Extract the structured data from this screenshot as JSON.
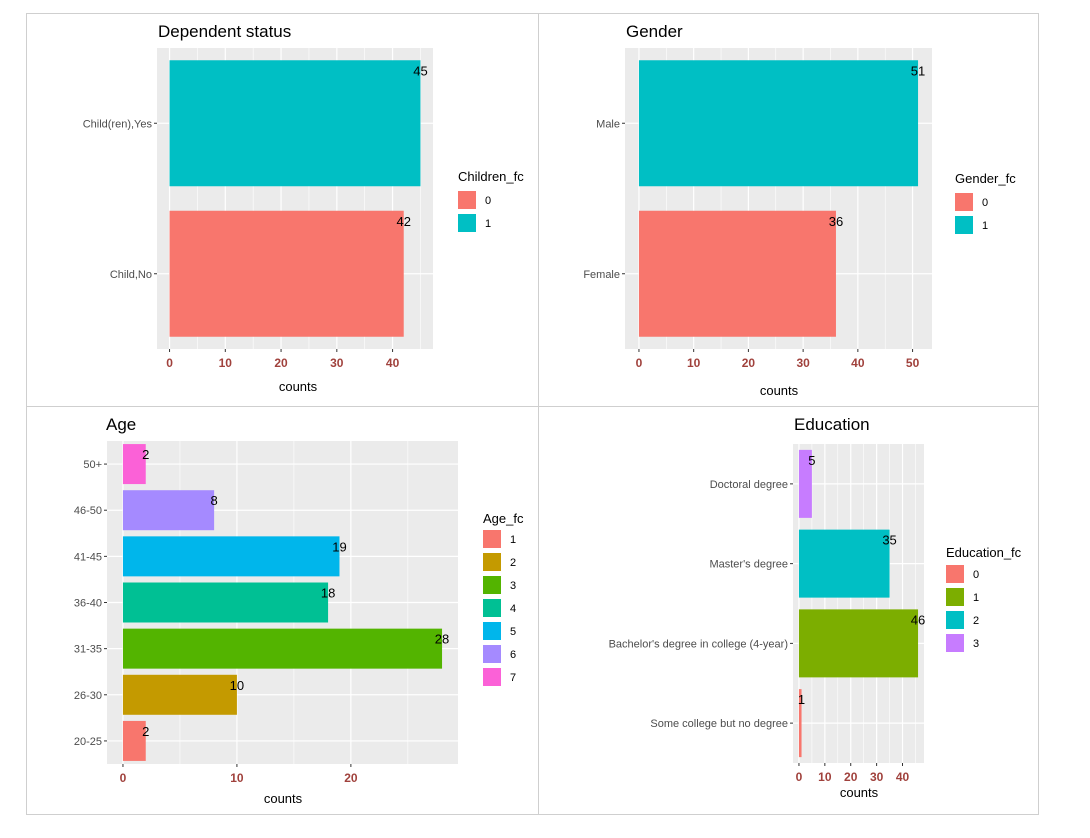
{
  "palette": [
    "#F8766D",
    "#C49A00",
    "#53B400",
    "#00C094",
    "#00B6EB",
    "#A58AFF",
    "#FB61D7"
  ],
  "chart_data": [
    {
      "type": "bar",
      "title": "Dependent status",
      "categories": [
        "Child,No",
        "Child(ren),Yes"
      ],
      "values": [
        42,
        45
      ],
      "labels": [
        "42",
        "45"
      ],
      "fill_groups": [
        "0",
        "1"
      ],
      "colors": [
        "#F8766D",
        "#00BFC4"
      ],
      "legend": {
        "title": "Children_fc",
        "items": [
          "0",
          "1"
        ],
        "colors": [
          "#F8766D",
          "#00BFC4"
        ]
      },
      "xlabel": "counts",
      "xticks": [
        0,
        10,
        20,
        30,
        40
      ],
      "xlim": [
        -2.25,
        47.25
      ],
      "ylabel": "",
      "grid": true,
      "legend_position": "right"
    },
    {
      "type": "bar",
      "title": "Gender",
      "categories": [
        "Female",
        "Male"
      ],
      "values": [
        36,
        51
      ],
      "labels": [
        "36",
        "51"
      ],
      "fill_groups": [
        "0",
        "1"
      ],
      "colors": [
        "#F8766D",
        "#00BFC4"
      ],
      "legend": {
        "title": "Gender_fc",
        "items": [
          "0",
          "1"
        ],
        "colors": [
          "#F8766D",
          "#00BFC4"
        ]
      },
      "xlabel": "counts",
      "xticks": [
        0,
        10,
        20,
        30,
        40,
        50
      ],
      "xlim": [
        -2.55,
        53.55
      ],
      "ylabel": "",
      "grid": true,
      "legend_position": "right"
    },
    {
      "type": "bar",
      "title": "Age",
      "categories": [
        "20-25",
        "26-30",
        "31-35",
        "36-40",
        "41-45",
        "46-50",
        "50+"
      ],
      "values": [
        2,
        10,
        28,
        18,
        19,
        8,
        2
      ],
      "labels": [
        "2",
        "10",
        "28",
        "18",
        "19",
        "8",
        "2"
      ],
      "fill_groups": [
        "1",
        "2",
        "3",
        "4",
        "5",
        "6",
        "7"
      ],
      "colors": [
        "#F8766D",
        "#C49A00",
        "#53B400",
        "#00C094",
        "#00B6EB",
        "#A58AFF",
        "#FB61D7"
      ],
      "legend": {
        "title": "Age_fc",
        "items": [
          "1",
          "2",
          "3",
          "4",
          "5",
          "6",
          "7"
        ],
        "colors": [
          "#F8766D",
          "#C49A00",
          "#53B400",
          "#00C094",
          "#00B6EB",
          "#A58AFF",
          "#FB61D7"
        ]
      },
      "xlabel": "counts",
      "xticks": [
        0,
        10,
        20
      ],
      "xlim": [
        -1.4,
        29.4
      ],
      "ylabel": "",
      "grid": true,
      "legend_position": "right"
    },
    {
      "type": "bar",
      "title": "Education",
      "categories": [
        "Some college but no degree",
        "Bachelor's degree in college (4-year)",
        "Master's degree",
        "Doctoral degree"
      ],
      "values": [
        1,
        46,
        35,
        5
      ],
      "labels": [
        "1",
        "46",
        "35",
        "5"
      ],
      "fill_groups": [
        "0",
        "1",
        "2",
        "3"
      ],
      "colors": [
        "#F8766D",
        "#7CAE00",
        "#00BFC4",
        "#C77CFF"
      ],
      "legend": {
        "title": "Education_fc",
        "items": [
          "0",
          "1",
          "2",
          "3"
        ],
        "colors": [
          "#F8766D",
          "#7CAE00",
          "#00BFC4",
          "#C77CFF"
        ]
      },
      "xlabel": "counts",
      "xticks": [
        0,
        10,
        20,
        30,
        40
      ],
      "xlim": [
        -2.3,
        48.3
      ],
      "ylabel": "",
      "grid": true,
      "legend_position": "right"
    }
  ]
}
